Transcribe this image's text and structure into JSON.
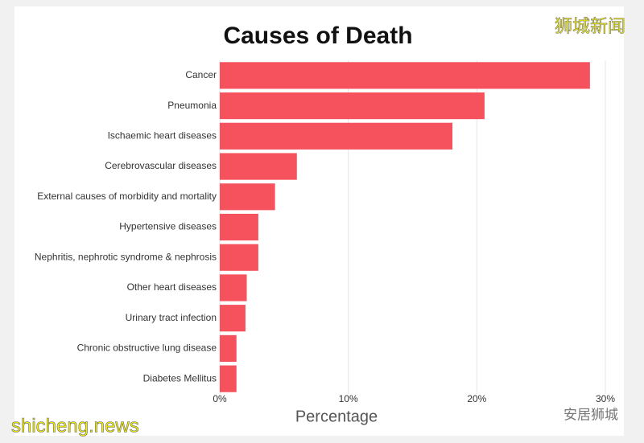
{
  "chart_data": {
    "type": "barh",
    "title": "Causes of Death",
    "categories": [
      "Cancer",
      "Pneumonia",
      "Ischaemic heart diseases",
      "Cerebrovascular diseases",
      "External causes of morbidity and mortality",
      "Hypertensive diseases",
      "Nephritis, nephrotic syndrome & nephrosis",
      "Other heart diseases",
      "Urinary tract infection",
      "Chronic obstructive lung disease",
      "Diabetes Mellitus"
    ],
    "values": [
      28.8,
      20.6,
      18.1,
      6.0,
      4.3,
      3.0,
      3.0,
      2.1,
      2.0,
      1.3,
      1.3
    ],
    "color": "#f6525e",
    "xlabel": "Percentage",
    "xlim": [
      0,
      30.5
    ],
    "xticks": [
      {
        "value": 0,
        "label": "0%"
      },
      {
        "value": 10,
        "label": "10%"
      },
      {
        "value": 20,
        "label": "20%"
      },
      {
        "value": 30,
        "label": "30%"
      }
    ],
    "grid": true
  },
  "watermarks": {
    "top_right": "狮城新闻",
    "bottom_left": "shicheng.news",
    "bottom_right": "安居狮城"
  }
}
